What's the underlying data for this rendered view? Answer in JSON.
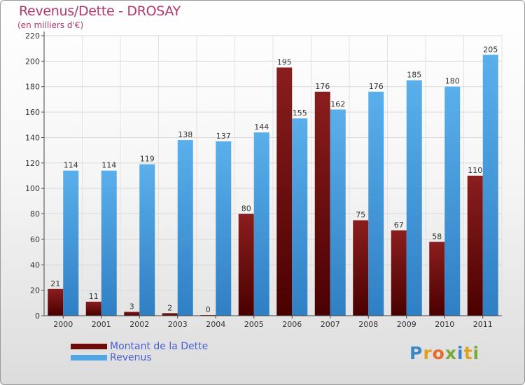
{
  "header": {
    "title": "Revenus/Dette - DROSAY",
    "subtitle": "(en milliers d'€)"
  },
  "legend": {
    "items": [
      {
        "label": "Montant de la Dette",
        "color": "#6e0a0a"
      },
      {
        "label": "Revenus",
        "color": "#4ea6e4"
      }
    ]
  },
  "logo": {
    "text": "Proxiti"
  },
  "chart_data": {
    "type": "bar",
    "title": "Revenus/Dette - DROSAY",
    "subtitle": "(en milliers d'€)",
    "categories": [
      "2000",
      "2001",
      "2002",
      "2003",
      "2004",
      "2005",
      "2006",
      "2007",
      "2008",
      "2009",
      "2010",
      "2011"
    ],
    "series": [
      {
        "name": "Montant de la Dette",
        "color": "#6e0a0a",
        "values": [
          21,
          11,
          3,
          2,
          0,
          80,
          195,
          176,
          75,
          67,
          58,
          110
        ]
      },
      {
        "name": "Revenus",
        "color": "#4ea6e4",
        "values": [
          114,
          114,
          119,
          138,
          137,
          144,
          155,
          162,
          176,
          185,
          180,
          205
        ]
      }
    ],
    "ylim": [
      0,
      220
    ],
    "yticks": [
      0,
      20,
      40,
      60,
      80,
      100,
      120,
      140,
      160,
      180,
      200,
      220
    ],
    "grid": true,
    "legend_position": "bottom-left"
  }
}
